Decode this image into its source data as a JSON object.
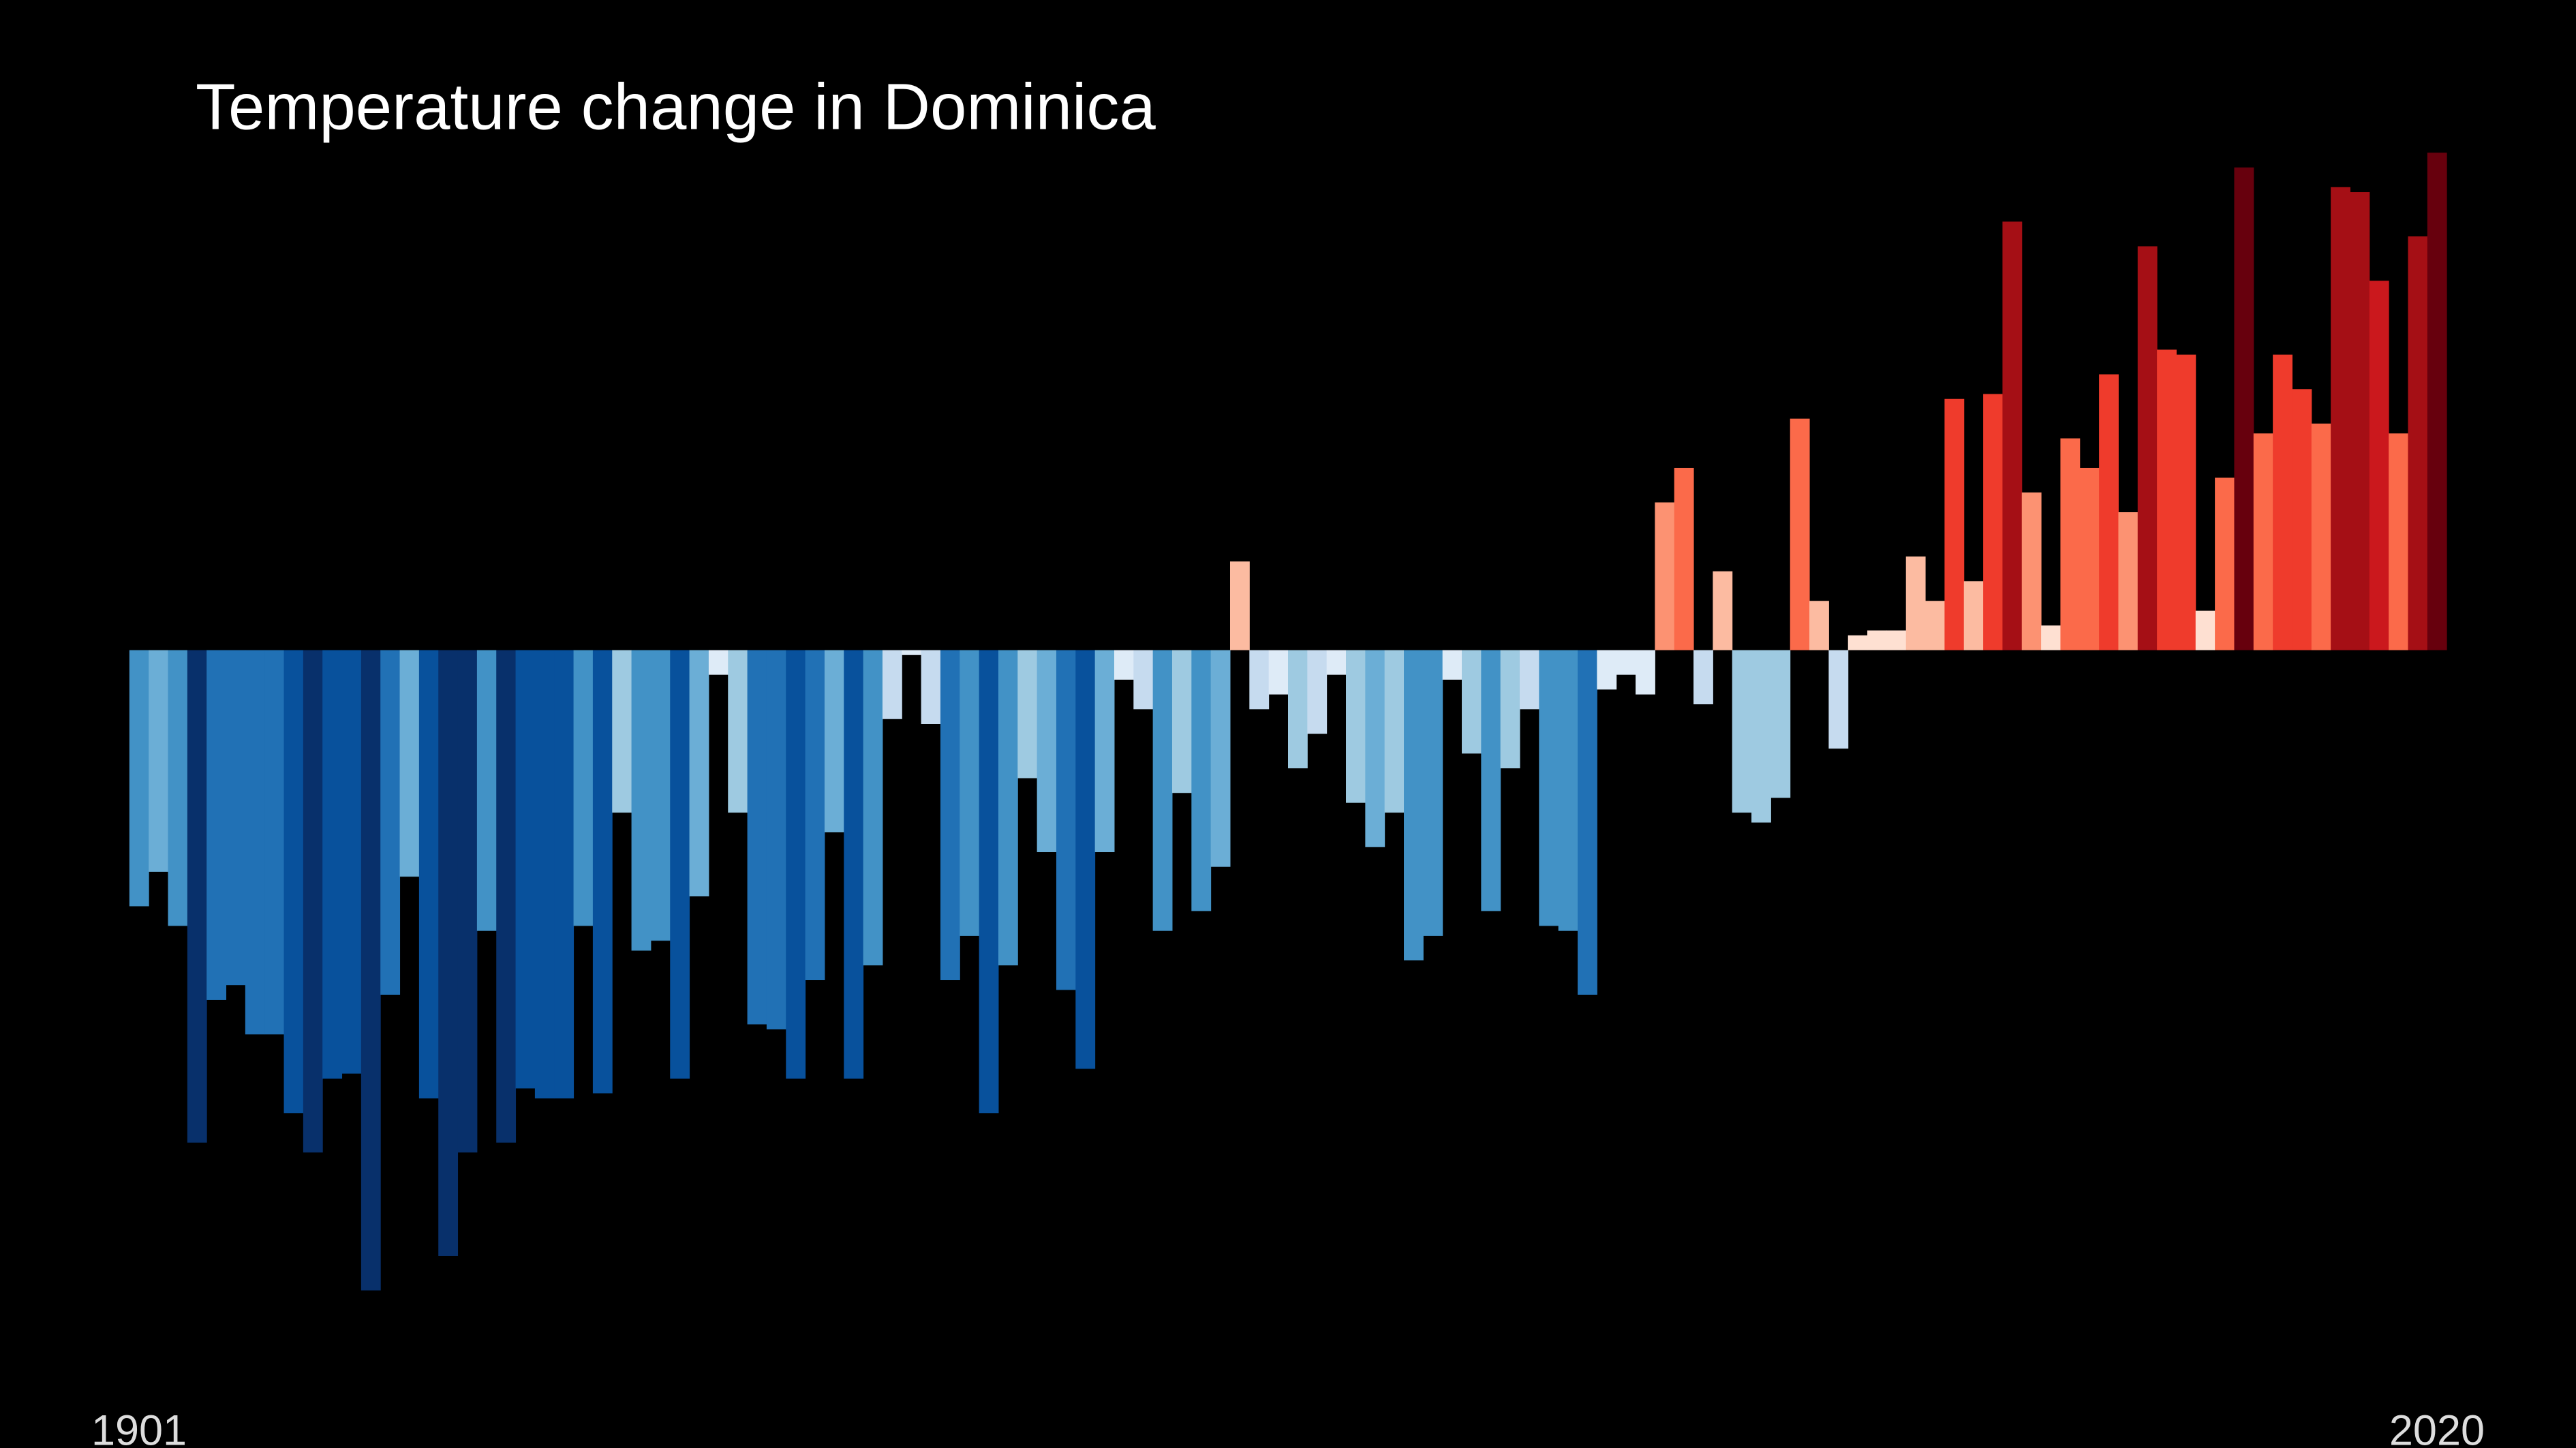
{
  "chart_data": {
    "type": "bar",
    "title": "Temperature change in Dominica",
    "x": [
      1901,
      1902,
      1903,
      1904,
      1905,
      1906,
      1907,
      1908,
      1909,
      1910,
      1911,
      1912,
      1913,
      1914,
      1915,
      1916,
      1917,
      1918,
      1919,
      1920,
      1921,
      1922,
      1923,
      1924,
      1925,
      1926,
      1927,
      1928,
      1929,
      1930,
      1931,
      1932,
      1933,
      1934,
      1935,
      1936,
      1937,
      1938,
      1939,
      1940,
      1941,
      1942,
      1943,
      1944,
      1945,
      1946,
      1947,
      1948,
      1949,
      1950,
      1951,
      1952,
      1953,
      1954,
      1955,
      1956,
      1957,
      1958,
      1959,
      1960,
      1961,
      1962,
      1963,
      1964,
      1965,
      1966,
      1967,
      1968,
      1969,
      1970,
      1971,
      1972,
      1973,
      1974,
      1975,
      1976,
      1977,
      1978,
      1979,
      1980,
      1981,
      1982,
      1983,
      1984,
      1985,
      1986,
      1987,
      1988,
      1989,
      1990,
      1991,
      1992,
      1993,
      1994,
      1995,
      1996,
      1997,
      1998,
      1999,
      2000,
      2001,
      2002,
      2003,
      2004,
      2005,
      2006,
      2007,
      2008,
      2009,
      2010,
      2011,
      2012,
      2013,
      2014,
      2015,
      2016,
      2017,
      2018,
      2019,
      2020
    ],
    "values": [
      -0.52,
      -0.45,
      -0.56,
      -1.0,
      -0.71,
      -0.68,
      -0.78,
      -0.78,
      -0.94,
      -1.02,
      -0.87,
      -0.86,
      -1.3,
      -0.7,
      -0.46,
      -0.91,
      -1.23,
      -1.02,
      -0.57,
      -1.0,
      -0.89,
      -0.91,
      -0.91,
      -0.56,
      -0.9,
      -0.33,
      -0.61,
      -0.59,
      -0.87,
      -0.5,
      -0.05,
      -0.33,
      -0.76,
      -0.77,
      -0.87,
      -0.67,
      -0.37,
      -0.87,
      -0.64,
      -0.14,
      -0.01,
      -0.15,
      -0.67,
      -0.58,
      -0.94,
      -0.64,
      -0.26,
      -0.41,
      -0.69,
      -0.85,
      -0.41,
      -0.06,
      -0.12,
      -0.57,
      -0.29,
      -0.53,
      -0.44,
      0.18,
      -0.12,
      -0.09,
      -0.24,
      -0.17,
      -0.05,
      -0.31,
      -0.4,
      -0.33,
      -0.63,
      -0.58,
      -0.06,
      -0.21,
      -0.53,
      -0.24,
      -0.12,
      -0.56,
      -0.57,
      -0.7,
      -0.08,
      -0.05,
      -0.09,
      0.3,
      0.37,
      -0.11,
      0.16,
      -0.33,
      -0.35,
      -0.3,
      0.47,
      0.1,
      -0.2,
      0.03,
      0.04,
      0.04,
      0.19,
      0.1,
      0.51,
      0.14,
      0.52,
      0.87,
      0.32,
      0.05,
      0.43,
      0.37,
      0.56,
      0.28,
      0.82,
      0.61,
      0.6,
      0.08,
      0.35,
      0.98,
      0.44,
      0.6,
      0.53,
      0.46,
      0.94,
      0.93,
      0.75,
      0.44,
      0.84,
      1.01
    ],
    "xlim": [
      1894.3,
      2027.7
    ],
    "ylim": [
      -1.62,
      1.32
    ],
    "xticks": [
      1901,
      2020
    ],
    "colormap": {
      "stops": [
        -0.95,
        -0.8,
        -0.65,
        -0.5,
        -0.35,
        -0.2,
        -0.1,
        0,
        0.1,
        0.2,
        0.35,
        0.5,
        0.65,
        0.8,
        0.95
      ],
      "colors": [
        "#08306b",
        "#08519c",
        "#2171b5",
        "#4292c6",
        "#6baed6",
        "#9ecae1",
        "#c6dbef",
        "#deebf7",
        "#fee0d2",
        "#fcbba1",
        "#fc9272",
        "#fb6a4a",
        "#ef3b2c",
        "#cb181d",
        "#a50f15",
        "#67000d"
      ]
    }
  }
}
